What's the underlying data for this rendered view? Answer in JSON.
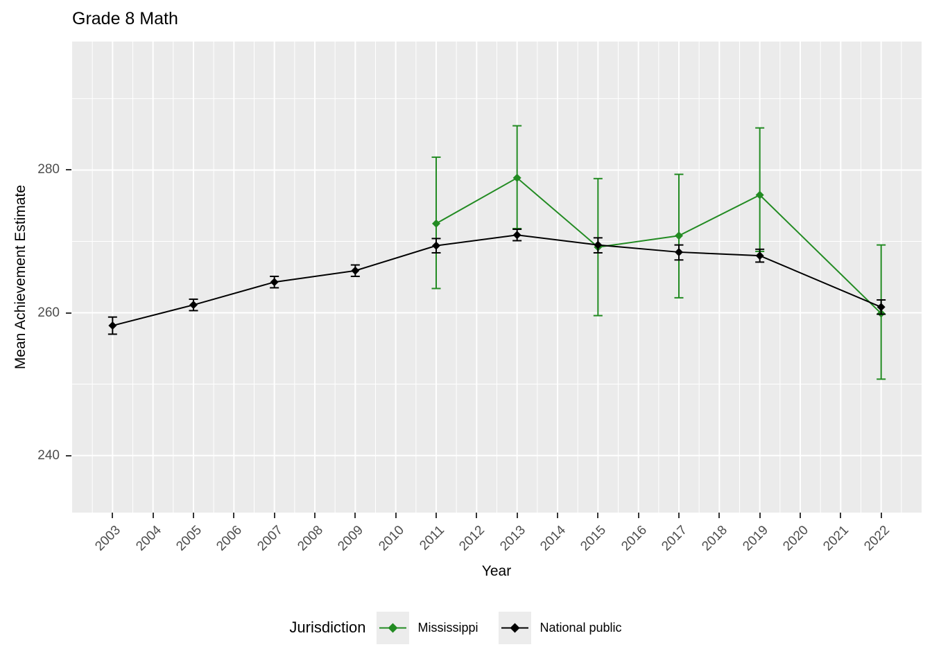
{
  "title": "Grade 8 Math",
  "chart_data": {
    "type": "line",
    "title": "Grade 8 Math",
    "xlabel": "Year",
    "ylabel": "Mean Achievement Estimate",
    "legend_title": "Jurisdiction",
    "legend_position": "bottom",
    "grid": true,
    "panel_bg": "#EBEBEB",
    "grid_color": "#FFFFFF",
    "axis_text_color": "#4D4D4D",
    "tick_color": "#333333",
    "xlim": [
      2002,
      2023
    ],
    "ylim": [
      232,
      298
    ],
    "x_ticks": [
      2003,
      2004,
      2005,
      2006,
      2007,
      2008,
      2009,
      2010,
      2011,
      2012,
      2013,
      2014,
      2015,
      2016,
      2017,
      2018,
      2019,
      2020,
      2021,
      2022
    ],
    "y_ticks": [
      240,
      260,
      280
    ],
    "y_minor_ticks": [
      250,
      270,
      290
    ],
    "marker": "diamond",
    "series": [
      {
        "name": "Mississippi",
        "color": "#228B22",
        "x": [
          2011,
          2013,
          2015,
          2017,
          2019,
          2022
        ],
        "y": [
          272.5,
          278.9,
          269.2,
          270.8,
          276.5,
          259.9
        ],
        "y_lower": [
          263.4,
          271.8,
          259.6,
          262.1,
          268.6,
          250.7
        ],
        "y_upper": [
          281.8,
          286.2,
          278.8,
          279.4,
          285.9,
          269.5
        ]
      },
      {
        "name": "National public",
        "color": "#000000",
        "x": [
          2003,
          2005,
          2007,
          2009,
          2011,
          2013,
          2015,
          2017,
          2019,
          2022
        ],
        "y": [
          258.2,
          261.1,
          264.3,
          265.9,
          269.4,
          270.9,
          269.5,
          268.5,
          268.0,
          260.8
        ],
        "y_lower": [
          257.0,
          260.3,
          263.5,
          265.1,
          268.4,
          270.1,
          268.4,
          267.4,
          267.1,
          259.8
        ],
        "y_upper": [
          259.4,
          261.9,
          265.1,
          266.7,
          270.4,
          271.7,
          270.5,
          269.5,
          268.9,
          261.8
        ]
      }
    ]
  }
}
